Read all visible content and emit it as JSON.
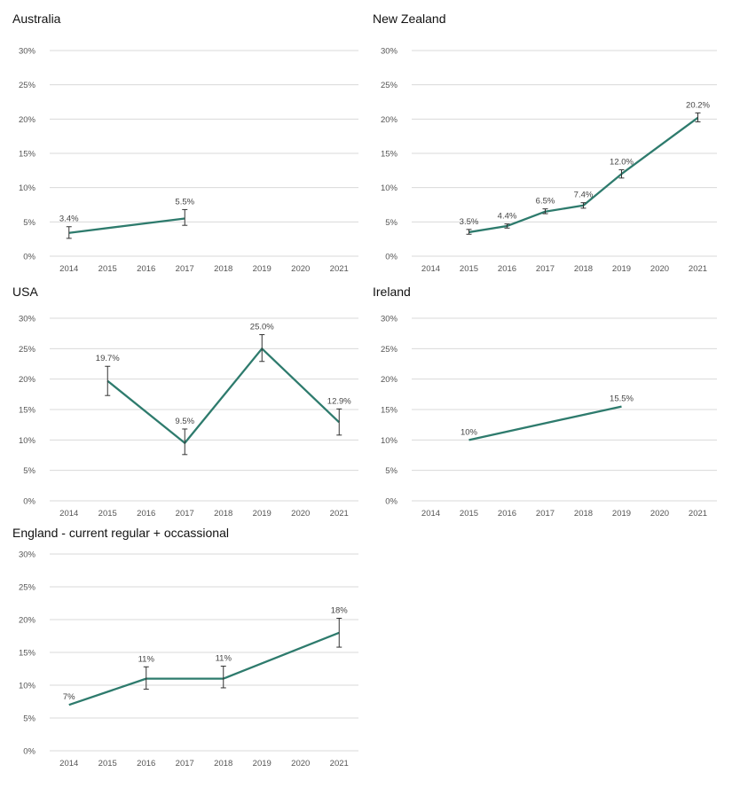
{
  "chart_data": [
    {
      "type": "line",
      "title": "Australia",
      "categories": [
        "2014",
        "2015",
        "2016",
        "2017",
        "2018",
        "2019",
        "2020",
        "2021"
      ],
      "yticks": [
        "0%",
        "5%",
        "10%",
        "15%",
        "20%",
        "25%",
        "30%"
      ],
      "ylim": [
        0,
        30
      ],
      "grid": true,
      "color": "#2e7b6d",
      "points": [
        {
          "x": "2014",
          "y": 3.4,
          "label": "3.4%",
          "err": [
            2.6,
            4.3
          ]
        },
        {
          "x": "2017",
          "y": 5.5,
          "label": "5.5%",
          "err": [
            4.5,
            6.8
          ]
        }
      ]
    },
    {
      "type": "line",
      "title": "New Zealand",
      "categories": [
        "2014",
        "2015",
        "2016",
        "2017",
        "2018",
        "2019",
        "2020",
        "2021"
      ],
      "yticks": [
        "0%",
        "5%",
        "10%",
        "15%",
        "20%",
        "25%",
        "30%"
      ],
      "ylim": [
        0,
        30
      ],
      "grid": true,
      "color": "#2e7b6d",
      "points": [
        {
          "x": "2015",
          "y": 3.5,
          "label": "3.5%",
          "err": [
            3.2,
            3.9
          ]
        },
        {
          "x": "2016",
          "y": 4.4,
          "label": "4.4%",
          "err": [
            4.1,
            4.7
          ]
        },
        {
          "x": "2017",
          "y": 6.5,
          "label": "6.5%",
          "err": [
            6.2,
            6.9
          ]
        },
        {
          "x": "2018",
          "y": 7.4,
          "label": "7.4%",
          "err": [
            7.0,
            7.8
          ]
        },
        {
          "x": "2019",
          "y": 12.0,
          "label": "12.0%",
          "err": [
            11.4,
            12.6
          ]
        },
        {
          "x": "2021",
          "y": 20.2,
          "label": "20.2%",
          "err": [
            19.6,
            20.9
          ]
        }
      ]
    },
    {
      "type": "line",
      "title": "USA",
      "categories": [
        "2014",
        "2015",
        "2016",
        "2017",
        "2018",
        "2019",
        "2020",
        "2021"
      ],
      "yticks": [
        "0%",
        "5%",
        "10%",
        "15%",
        "20%",
        "25%",
        "30%"
      ],
      "ylim": [
        0,
        30
      ],
      "grid": true,
      "color": "#2e7b6d",
      "points": [
        {
          "x": "2015",
          "y": 19.7,
          "label": "19.7%",
          "err": [
            17.3,
            22.1
          ]
        },
        {
          "x": "2017",
          "y": 9.5,
          "label": "9.5%",
          "err": [
            7.6,
            11.8
          ]
        },
        {
          "x": "2019",
          "y": 25.0,
          "label": "25.0%",
          "err": [
            22.9,
            27.3
          ]
        },
        {
          "x": "2021",
          "y": 12.9,
          "label": "12.9%",
          "err": [
            10.8,
            15.1
          ]
        }
      ]
    },
    {
      "type": "line",
      "title": "Ireland",
      "categories": [
        "2014",
        "2015",
        "2016",
        "2017",
        "2018",
        "2019",
        "2020",
        "2021"
      ],
      "yticks": [
        "0%",
        "5%",
        "10%",
        "15%",
        "20%",
        "25%",
        "30%"
      ],
      "ylim": [
        0,
        30
      ],
      "grid": true,
      "color": "#2e7b6d",
      "points": [
        {
          "x": "2015",
          "y": 10,
          "label": "10%"
        },
        {
          "x": "2019",
          "y": 15.5,
          "label": "15.5%"
        }
      ]
    },
    {
      "type": "line",
      "title": "England - current regular + occassional",
      "categories": [
        "2014",
        "2015",
        "2016",
        "2017",
        "2018",
        "2019",
        "2020",
        "2021"
      ],
      "yticks": [
        "0%",
        "5%",
        "10%",
        "15%",
        "20%",
        "25%",
        "30%"
      ],
      "ylim": [
        0,
        30
      ],
      "grid": true,
      "color": "#2e7b6d",
      "points": [
        {
          "x": "2014",
          "y": 7,
          "label": "7%"
        },
        {
          "x": "2016",
          "y": 11,
          "label": "11%",
          "err": [
            9.4,
            12.8
          ]
        },
        {
          "x": "2018",
          "y": 11,
          "label": "11%",
          "err": [
            9.6,
            12.9
          ]
        },
        {
          "x": "2021",
          "y": 18,
          "label": "18%",
          "err": [
            15.8,
            20.2
          ]
        }
      ]
    }
  ]
}
